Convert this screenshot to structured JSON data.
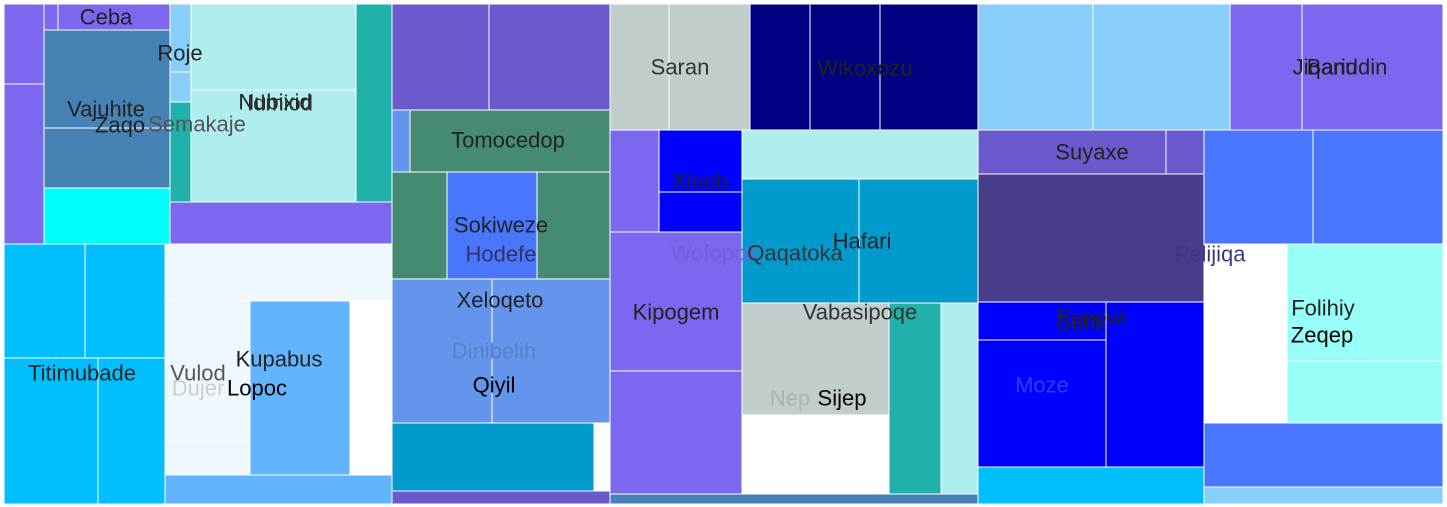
{
  "chart_data": {
    "type": "treemap",
    "title": "",
    "cells": [
      {
        "label": "",
        "color": "#7B68EE"
      },
      {
        "label": "",
        "color": "#7B68EE"
      },
      {
        "label": "",
        "color": "#7B68EE"
      },
      {
        "label": "Ceba",
        "color": "#7B68EE",
        "text_color": "#222222"
      },
      {
        "label": "Vajuhite",
        "color": "#4682B4",
        "text_color": "#222222"
      },
      {
        "label": "Zaqo",
        "color": "#4682B4",
        "text_color": "#222222"
      },
      {
        "label": "",
        "color": "#4682B4"
      },
      {
        "label": "",
        "color": "#00FFFF"
      },
      {
        "label": "Roje",
        "color": "#87CEFA",
        "text_color": "#222222"
      },
      {
        "label": "",
        "color": "#87CEFA"
      },
      {
        "label": "",
        "color": "#20B2AA"
      },
      {
        "label": "Semakaje",
        "color": "#AFEEEE",
        "text_color": "#555555"
      },
      {
        "label": "Nubixid",
        "color": "#AFEEEE",
        "text_color": "#222222"
      },
      {
        "label": "Idmiod",
        "color": "#AFEEEE",
        "text_color": "#333333"
      },
      {
        "label": "",
        "color": "#20B2AA"
      },
      {
        "label": "",
        "color": "#7B68EE"
      },
      {
        "label": "Titimubade",
        "color": "#00BFFF",
        "text_color": "#222222"
      },
      {
        "label": "",
        "color": "#00BFFF"
      },
      {
        "label": "",
        "color": "#00BFFF"
      },
      {
        "label": "",
        "color": "#00BFFF"
      },
      {
        "label": "",
        "color": "#F0F8FF"
      },
      {
        "label": "Vulod",
        "color": "#F0F8FF",
        "text_color": "#555555"
      },
      {
        "label": "Dujer",
        "color": "#F0F8FF",
        "text_color": "#cccccc"
      },
      {
        "label": "",
        "color": "#F0F8FF"
      },
      {
        "label": "Kupabus",
        "color": "#63B4FF",
        "text_color": "#222222"
      },
      {
        "label": "Lopoc",
        "color": "#63B4FF",
        "text_color": "#000000"
      },
      {
        "label": "",
        "color": "#63B4FF"
      },
      {
        "label": "",
        "color": "#6A5ACD"
      },
      {
        "label": "",
        "color": "#6A5ACD"
      },
      {
        "label": "",
        "color": "#6495ED"
      },
      {
        "label": "Tomocedop",
        "color": "#458B74",
        "text_color": "#222222"
      },
      {
        "label": "",
        "color": "#458B74"
      },
      {
        "label": "Sokiweze",
        "color": "#4876FF",
        "text_color": "#222222"
      },
      {
        "label": "Hodefe",
        "color": "#4876FF",
        "text_color": "#333366"
      },
      {
        "label": "",
        "color": "#458B74"
      },
      {
        "label": "Xeloqeto",
        "color": "#6495ED",
        "text_color": "#222222"
      },
      {
        "label": "Dinibelih",
        "color": "#6495ED",
        "text_color": "#5a7fc9"
      },
      {
        "label": "Qiyil",
        "color": "#6495ED",
        "text_color": "#000000"
      },
      {
        "label": "",
        "color": "#009ACD"
      },
      {
        "label": "",
        "color": "#6A5ACD"
      },
      {
        "label": "Saran",
        "color": "#C1CDCD",
        "text_color": "#333333"
      },
      {
        "label": "",
        "color": "#C1CDCD"
      },
      {
        "label": "Wikoxozu",
        "color": "#000080",
        "text_color": "#222222"
      },
      {
        "label": "",
        "color": "#000080"
      },
      {
        "label": "",
        "color": "#000080"
      },
      {
        "label": "",
        "color": "#7B68EE"
      },
      {
        "label": "Xinob",
        "color": "#0000FF",
        "text_color": "#222222"
      },
      {
        "label": "",
        "color": "#0000FF"
      },
      {
        "label": "Kipogem",
        "color": "#7B68EE",
        "text_color": "#222222"
      },
      {
        "label": "Wofopok",
        "color": "#7B68EE",
        "text_color": "#6f5fd8"
      },
      {
        "label": "",
        "color": "#7B68EE"
      },
      {
        "label": "",
        "color": "#4682B4"
      },
      {
        "label": "",
        "color": "#AFEEEE"
      },
      {
        "label": "Qaqatoka",
        "color": "#009ACD",
        "text_color": "#333333"
      },
      {
        "label": "Hafari",
        "color": "#009ACD",
        "text_color": "#222222"
      },
      {
        "label": "Vabasipoqe",
        "color": "#C1CDCD",
        "text_color": "#333333"
      },
      {
        "label": "Nep",
        "color": "#C1CDCD",
        "text_color": "#aab3b3"
      },
      {
        "label": "Sijep",
        "color": "#C1CDCD",
        "text_color": "#000000"
      },
      {
        "label": "",
        "color": "#20B2AA"
      },
      {
        "label": "",
        "color": "#AFEEEE"
      },
      {
        "label": "",
        "color": "#87CEFA"
      },
      {
        "label": "",
        "color": "#87CEFA"
      },
      {
        "label": "Suyaxe",
        "color": "#6A5ACD",
        "text_color": "#222222"
      },
      {
        "label": "",
        "color": "#6A5ACD"
      },
      {
        "label": "",
        "color": "#483D8B"
      },
      {
        "label": "",
        "color": "#483D8B"
      },
      {
        "label": "Pelijiqa",
        "color": "#483D8B",
        "text_color": "#3a3a7a"
      },
      {
        "label": "Fanowi",
        "color": "#0000FF",
        "text_color": "#222222"
      },
      {
        "label": "Suro",
        "color": "#0000FF",
        "text_color": "#222222"
      },
      {
        "label": "Moze",
        "color": "#0000FF",
        "text_color": "#2a3fff"
      },
      {
        "label": "",
        "color": "#00BFFF"
      },
      {
        "label": "Jiqanu",
        "color": "#7B68EE",
        "text_color": "#222222"
      },
      {
        "label": "Bariddin",
        "color": "#7B68EE",
        "text_color": "#222222"
      },
      {
        "label": "",
        "color": "#4876FF"
      },
      {
        "label": "",
        "color": "#4876FF"
      },
      {
        "label": "Folihiy",
        "color": "#98FFF8",
        "text_color": "#222222"
      },
      {
        "label": "Zeqep",
        "color": "#98FFF8",
        "text_color": "#000000"
      },
      {
        "label": "",
        "color": "#98FFF8"
      },
      {
        "label": "",
        "color": "#4876FF"
      },
      {
        "label": "",
        "color": "#87CEFA"
      }
    ]
  }
}
